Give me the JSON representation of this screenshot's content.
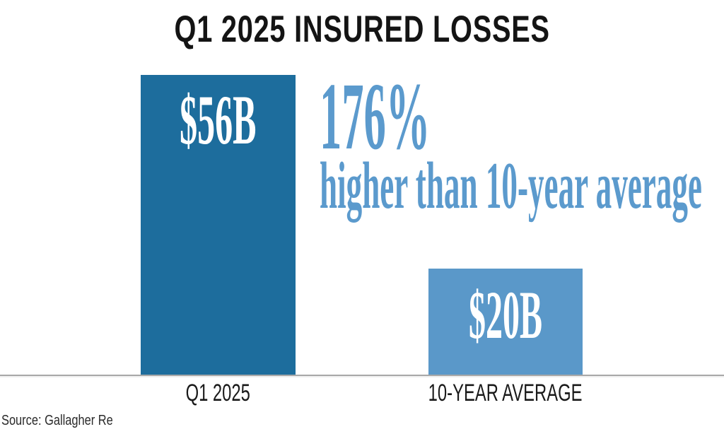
{
  "chart_data": {
    "type": "bar",
    "title": "Q1 2025 INSURED LOSSES",
    "categories": [
      "Q1 2025",
      "10-YEAR AVERAGE"
    ],
    "values": [
      56,
      20
    ],
    "value_labels": [
      "$56B",
      "$20B"
    ],
    "unit": "$B (billions USD, insured losses)",
    "ylim": [
      0,
      56
    ],
    "grid": false,
    "legend": false,
    "bar_colors": [
      "#1d6d9d",
      "#5a98c9"
    ],
    "value_label_color": "#ffffff",
    "axis_label_color": "#1a1a1a",
    "baseline_color": "#a8a8a8",
    "annotation": {
      "headline": "176%",
      "subline": "higher than 10-year average",
      "color": "#5b9acd"
    },
    "source": "Source: Gallagher Re"
  }
}
